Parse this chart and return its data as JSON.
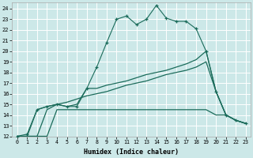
{
  "xlabel": "Humidex (Indice chaleur)",
  "bg_color": "#cce8e8",
  "line_color": "#1a6b5a",
  "grid_color": "#ffffff",
  "xlim": [
    -0.5,
    23.5
  ],
  "ylim": [
    12,
    24.6
  ],
  "xticks": [
    0,
    1,
    2,
    3,
    4,
    5,
    6,
    7,
    8,
    9,
    10,
    11,
    12,
    13,
    14,
    15,
    16,
    17,
    18,
    19,
    20,
    21,
    22,
    23
  ],
  "yticks": [
    12,
    13,
    14,
    15,
    16,
    17,
    18,
    19,
    20,
    21,
    22,
    23,
    24
  ],
  "series": [
    {
      "x": [
        0,
        1,
        2,
        3,
        4,
        5,
        6,
        7,
        8,
        9,
        10,
        11,
        12,
        13,
        14,
        15,
        16,
        17,
        18,
        19,
        20,
        21,
        22,
        23
      ],
      "y": [
        12,
        12.2,
        14.5,
        14.8,
        15.0,
        14.8,
        14.8,
        16.5,
        18.5,
        20.8,
        23.0,
        23.3,
        22.5,
        23.0,
        24.3,
        23.1,
        22.8,
        22.8,
        22.1,
        20.0,
        16.2,
        14.0,
        13.5,
        13.2
      ],
      "marker": "+"
    },
    {
      "x": [
        0,
        1,
        2,
        3,
        4,
        5,
        6,
        7,
        8,
        9,
        10,
        11,
        12,
        13,
        14,
        15,
        16,
        17,
        18,
        19,
        20,
        21,
        22,
        23
      ],
      "y": [
        12,
        12,
        12,
        12,
        14.5,
        14.5,
        14.5,
        14.5,
        14.5,
        14.5,
        14.5,
        14.5,
        14.5,
        14.5,
        14.5,
        14.5,
        14.5,
        14.5,
        14.5,
        14.5,
        14.0,
        14.0,
        13.5,
        13.2
      ],
      "marker": null
    },
    {
      "x": [
        0,
        1,
        2,
        3,
        4,
        5,
        6,
        7,
        8,
        9,
        10,
        11,
        12,
        13,
        14,
        15,
        16,
        17,
        18,
        19,
        20,
        21,
        22,
        23
      ],
      "y": [
        12,
        12,
        14.5,
        14.8,
        15.0,
        15.2,
        15.5,
        15.8,
        16.0,
        16.2,
        16.5,
        16.8,
        17.0,
        17.2,
        17.5,
        17.8,
        18.0,
        18.2,
        18.5,
        19.0,
        16.2,
        14.0,
        13.5,
        13.2
      ],
      "marker": null
    },
    {
      "x": [
        0,
        1,
        2,
        3,
        4,
        5,
        6,
        7,
        8,
        9,
        10,
        11,
        12,
        13,
        14,
        15,
        16,
        17,
        18,
        19,
        20,
        21,
        22,
        23
      ],
      "y": [
        12,
        12,
        12,
        14.5,
        15.0,
        14.8,
        15.0,
        16.5,
        16.5,
        16.8,
        17.0,
        17.2,
        17.5,
        17.8,
        18.0,
        18.2,
        18.5,
        18.8,
        19.2,
        20.0,
        16.2,
        14.0,
        13.5,
        13.2
      ],
      "marker": null
    }
  ]
}
